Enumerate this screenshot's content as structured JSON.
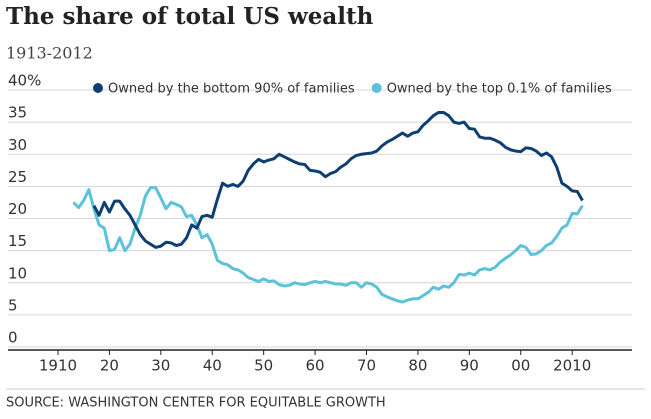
{
  "chart_data": {
    "type": "line",
    "title": "The share of total US wealth",
    "subtitle": "1913-2012",
    "source": "SOURCE: WASHINGTON CENTER FOR EQUITABLE GROWTH",
    "x": [
      1913,
      1914,
      1915,
      1916,
      1917,
      1918,
      1919,
      1920,
      1921,
      1922,
      1923,
      1924,
      1925,
      1926,
      1927,
      1928,
      1929,
      1930,
      1931,
      1932,
      1933,
      1934,
      1935,
      1936,
      1937,
      1938,
      1939,
      1940,
      1941,
      1942,
      1943,
      1944,
      1945,
      1946,
      1947,
      1948,
      1949,
      1950,
      1951,
      1952,
      1953,
      1954,
      1955,
      1956,
      1957,
      1958,
      1959,
      1960,
      1961,
      1962,
      1963,
      1964,
      1965,
      1966,
      1967,
      1968,
      1969,
      1970,
      1971,
      1972,
      1973,
      1974,
      1975,
      1976,
      1977,
      1978,
      1979,
      1980,
      1981,
      1982,
      1983,
      1984,
      1985,
      1986,
      1987,
      1988,
      1989,
      1990,
      1991,
      1992,
      1993,
      1994,
      1995,
      1996,
      1997,
      1998,
      1999,
      2000,
      2001,
      2002,
      2003,
      2004,
      2005,
      2006,
      2007,
      2008,
      2009,
      2010,
      2011,
      2012
    ],
    "series": [
      {
        "name": "Owned by the bottom 90% of families",
        "color": "#0d3f73",
        "values": [
          null,
          null,
          null,
          null,
          22,
          20.5,
          22.5,
          21,
          22.7,
          22.7,
          21.5,
          20.5,
          19,
          17.5,
          16.5,
          16,
          15.5,
          15.7,
          16.3,
          16.2,
          15.8,
          16,
          17,
          19,
          18.5,
          20.3,
          20.5,
          20.2,
          23,
          25.5,
          25,
          25.3,
          25,
          25.8,
          27.5,
          28.5,
          29.2,
          28.8,
          29.1,
          29.3,
          30,
          29.6,
          29.2,
          28.8,
          28.5,
          28.4,
          27.5,
          27.4,
          27.2,
          26.5,
          27,
          27.3,
          28,
          28.5,
          29.3,
          29.8,
          30,
          30.1,
          30.2,
          30.5,
          31.3,
          31.9,
          32.3,
          32.8,
          33.3,
          32.8,
          33.3,
          33.5,
          34.5,
          35.2,
          36,
          36.5,
          36.5,
          36,
          35,
          34.8,
          35,
          34,
          33.9,
          32.7,
          32.5,
          32.5,
          32.2,
          31.8,
          31.1,
          30.7,
          30.5,
          30.4,
          31,
          30.9,
          30.5,
          29.8,
          30.2,
          29.6,
          28,
          25.5,
          25,
          24.3,
          24.2,
          22.8
        ]
      },
      {
        "name": "Owned by the top 0.1% of families",
        "color": "#5bc2d9",
        "values": [
          22.5,
          21.7,
          22.8,
          24.5,
          21.5,
          19,
          18.5,
          15,
          15.2,
          17,
          15,
          16,
          18.5,
          20.5,
          23.5,
          24.8,
          24.8,
          23.2,
          21.5,
          22.5,
          22.2,
          21.8,
          20.3,
          20.5,
          19,
          17,
          17.5,
          16,
          13.5,
          13,
          12.8,
          12.2,
          12,
          11.5,
          10.8,
          10.5,
          10.2,
          10.6,
          10.2,
          10.3,
          9.7,
          9.5,
          9.6,
          10,
          9.8,
          9.7,
          10,
          10.2,
          10,
          10.2,
          10,
          9.8,
          9.8,
          9.6,
          10,
          10,
          9.3,
          10,
          9.8,
          9.3,
          8.2,
          7.8,
          7.5,
          7.2,
          7,
          7.3,
          7.5,
          7.5,
          8,
          8.5,
          9.3,
          9,
          9.5,
          9.3,
          10,
          11.3,
          11.2,
          11.5,
          11.2,
          12,
          12.2,
          12,
          12.4,
          13.2,
          13.8,
          14.3,
          15,
          15.8,
          15.5,
          14.4,
          14.5,
          15,
          15.8,
          16.2,
          17.2,
          18.5,
          19,
          20.8,
          20.7,
          22
        ]
      }
    ],
    "xlim": [
      1903,
      2023
    ],
    "xticks": [
      {
        "value": 1910,
        "label": "1910"
      },
      {
        "value": 1920,
        "label": "20"
      },
      {
        "value": 1930,
        "label": "30"
      },
      {
        "value": 1940,
        "label": "40"
      },
      {
        "value": 1950,
        "label": "50"
      },
      {
        "value": 1960,
        "label": "60"
      },
      {
        "value": 1970,
        "label": "70"
      },
      {
        "value": 1980,
        "label": "80"
      },
      {
        "value": 1990,
        "label": "90"
      },
      {
        "value": 2000,
        "label": "00"
      },
      {
        "value": 2010,
        "label": "2010"
      }
    ],
    "ylim": [
      0,
      40
    ],
    "yticks": [
      0,
      5,
      10,
      15,
      20,
      25,
      30,
      35,
      {
        "value": 40,
        "label": "40%"
      }
    ],
    "grid": true
  }
}
